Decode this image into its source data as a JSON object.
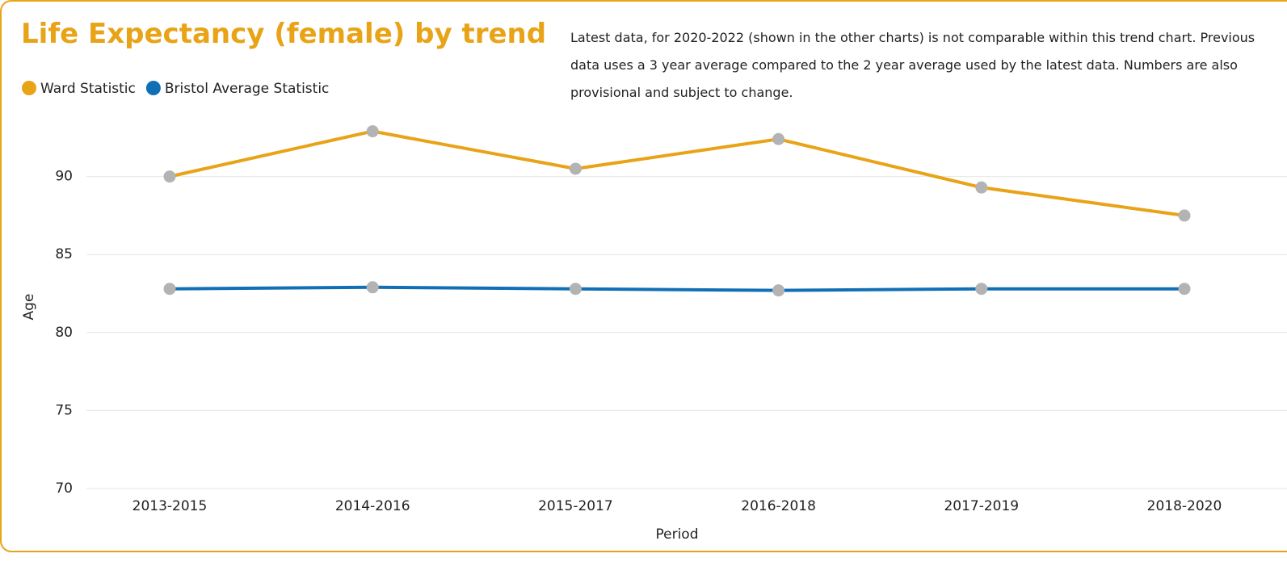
{
  "chart_data": {
    "type": "line",
    "title": "Life Expectancy (female) by trend",
    "note": "Latest data, for 2020-2022 (shown in the other charts) is not comparable within this trend chart. Previous data uses a 3 year average compared to the 2 year average used by the latest data. Numbers are also provisional and subject to change.",
    "x_label": "Period",
    "y_label": "Age",
    "categories": [
      "2013-2015",
      "2014-2016",
      "2015-2017",
      "2016-2018",
      "2017-2019",
      "2018-2020"
    ],
    "series": [
      {
        "name": "Ward Statistic",
        "color": "#e8a317",
        "values": [
          90.0,
          92.9,
          90.5,
          92.4,
          89.3,
          87.5
        ]
      },
      {
        "name": "Bristol Average Statistic",
        "color": "#1170b5",
        "values": [
          82.8,
          82.9,
          82.8,
          82.7,
          82.8,
          82.8
        ]
      }
    ],
    "marker_color": "#b3b3b3",
    "ylim": [
      70,
      93.5
    ],
    "yticks": [
      70,
      75,
      80,
      85,
      90
    ],
    "grid": true,
    "legend": "top-left"
  }
}
